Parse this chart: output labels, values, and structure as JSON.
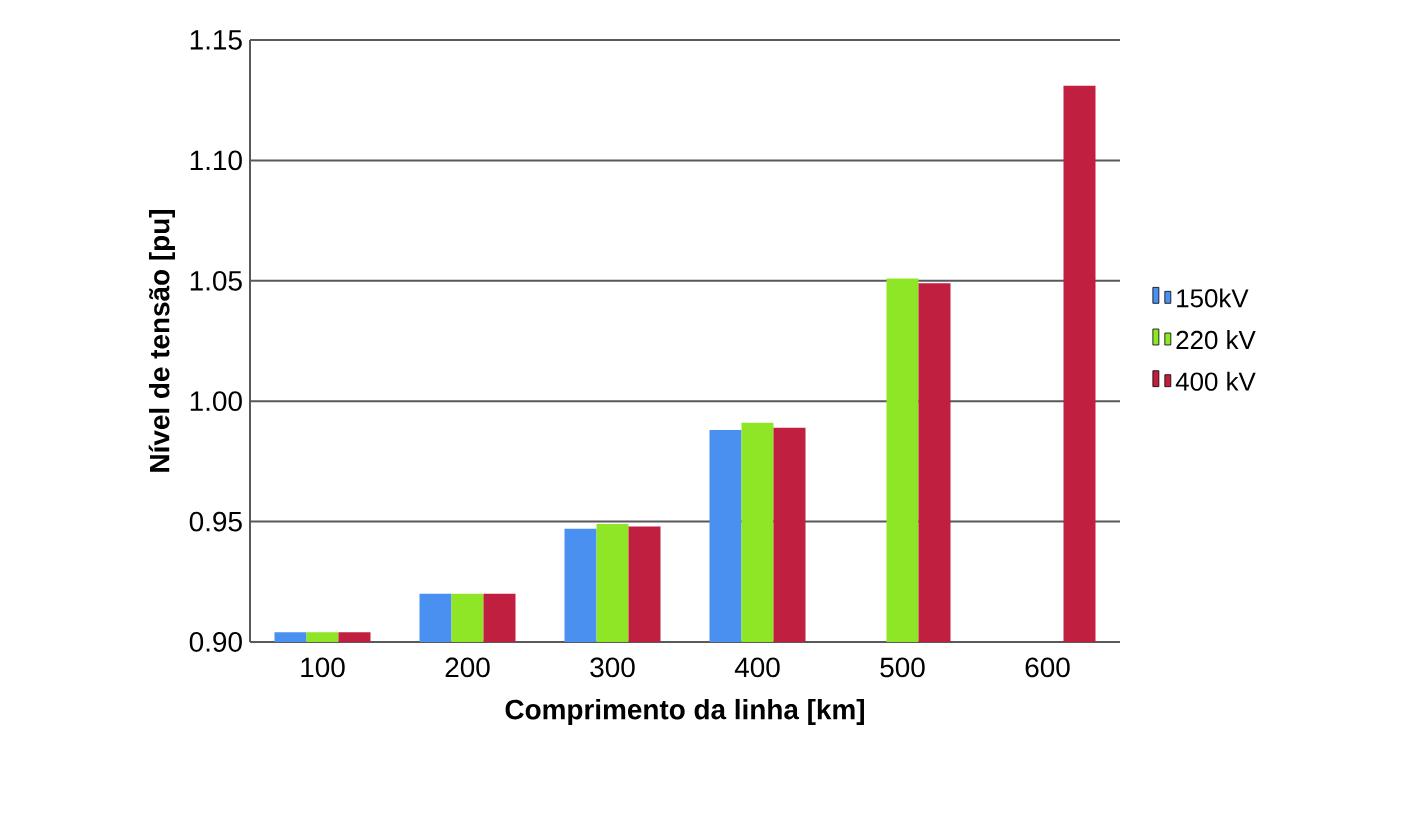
{
  "chart_data": {
    "type": "bar",
    "xlabel": "Comprimento da linha [km]",
    "ylabel": "Nível de tensão [pu]",
    "categories": [
      "100",
      "200",
      "300",
      "400",
      "500",
      "600"
    ],
    "series": [
      {
        "name": "150kV",
        "color": "#4a90f0",
        "values": [
          0.904,
          0.92,
          0.947,
          0.988,
          null,
          null
        ]
      },
      {
        "name": "220 kV",
        "color": "#8ee627",
        "values": [
          0.904,
          0.92,
          0.949,
          0.991,
          1.051,
          null
        ]
      },
      {
        "name": "400 kV",
        "color": "#c01f40",
        "values": [
          0.904,
          0.92,
          0.948,
          0.989,
          1.049,
          1.131
        ]
      }
    ],
    "ylim": [
      0.9,
      1.15
    ],
    "yticks": [
      {
        "value": 0.9,
        "label": "0.90"
      },
      {
        "value": 0.95,
        "label": "0.95"
      },
      {
        "value": 1.0,
        "label": "1.00"
      },
      {
        "value": 1.05,
        "label": "1.05"
      },
      {
        "value": 1.1,
        "label": "1.10"
      },
      {
        "value": 1.15,
        "label": "1.15"
      }
    ],
    "grid": "y",
    "legend": "right"
  }
}
